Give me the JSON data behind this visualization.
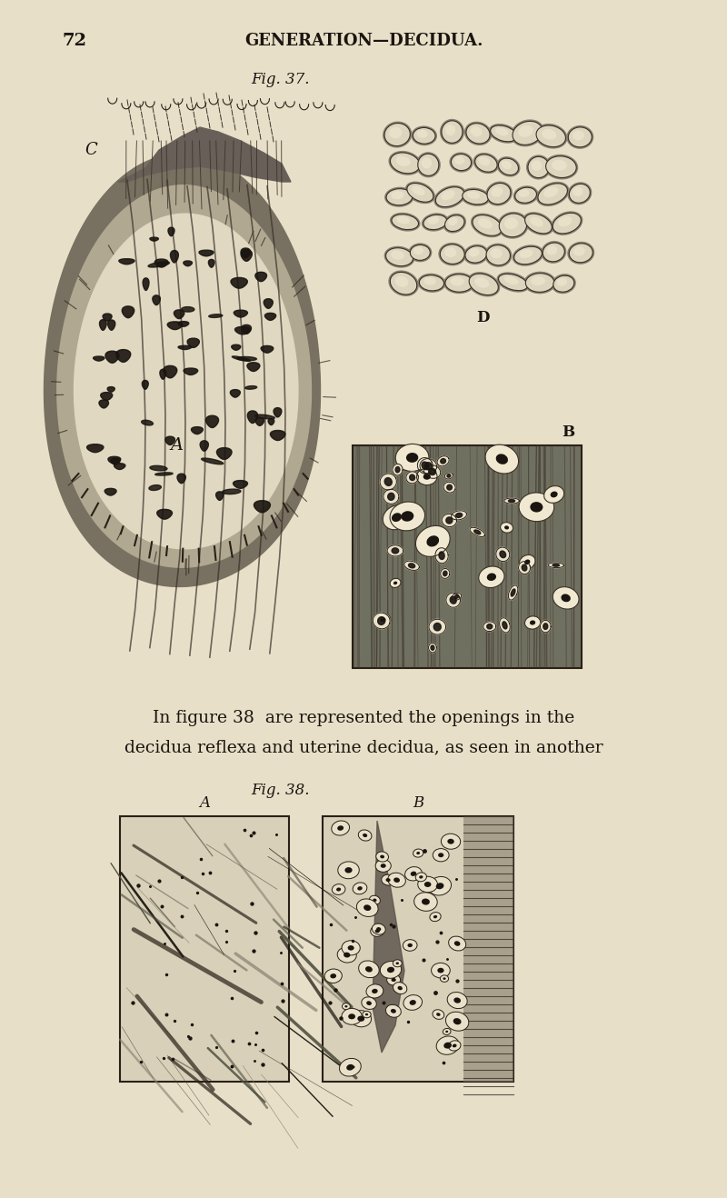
{
  "page_number": "72",
  "header_title": "GENERATION—DECIDUA.",
  "fig37_label": "Fig. 37.",
  "fig38_label": "Fig. 38.",
  "text_line1": "In figure 38  are represented the openings in the",
  "text_line2": "decidua reflexa and uterine decidua, as seen in another",
  "label_A_fig37": "A",
  "label_B_fig37": "B",
  "label_C_fig37": "C",
  "label_D_fig37": "D",
  "label_A_fig38": "A",
  "label_B_fig38": "B",
  "bg_color": "#e8dfc8",
  "text_bg": "#e0d8c0",
  "ink_color": "#1a1510",
  "mid_gray": "#888070",
  "light_gray": "#c8c0a8",
  "dark_gray": "#404038"
}
